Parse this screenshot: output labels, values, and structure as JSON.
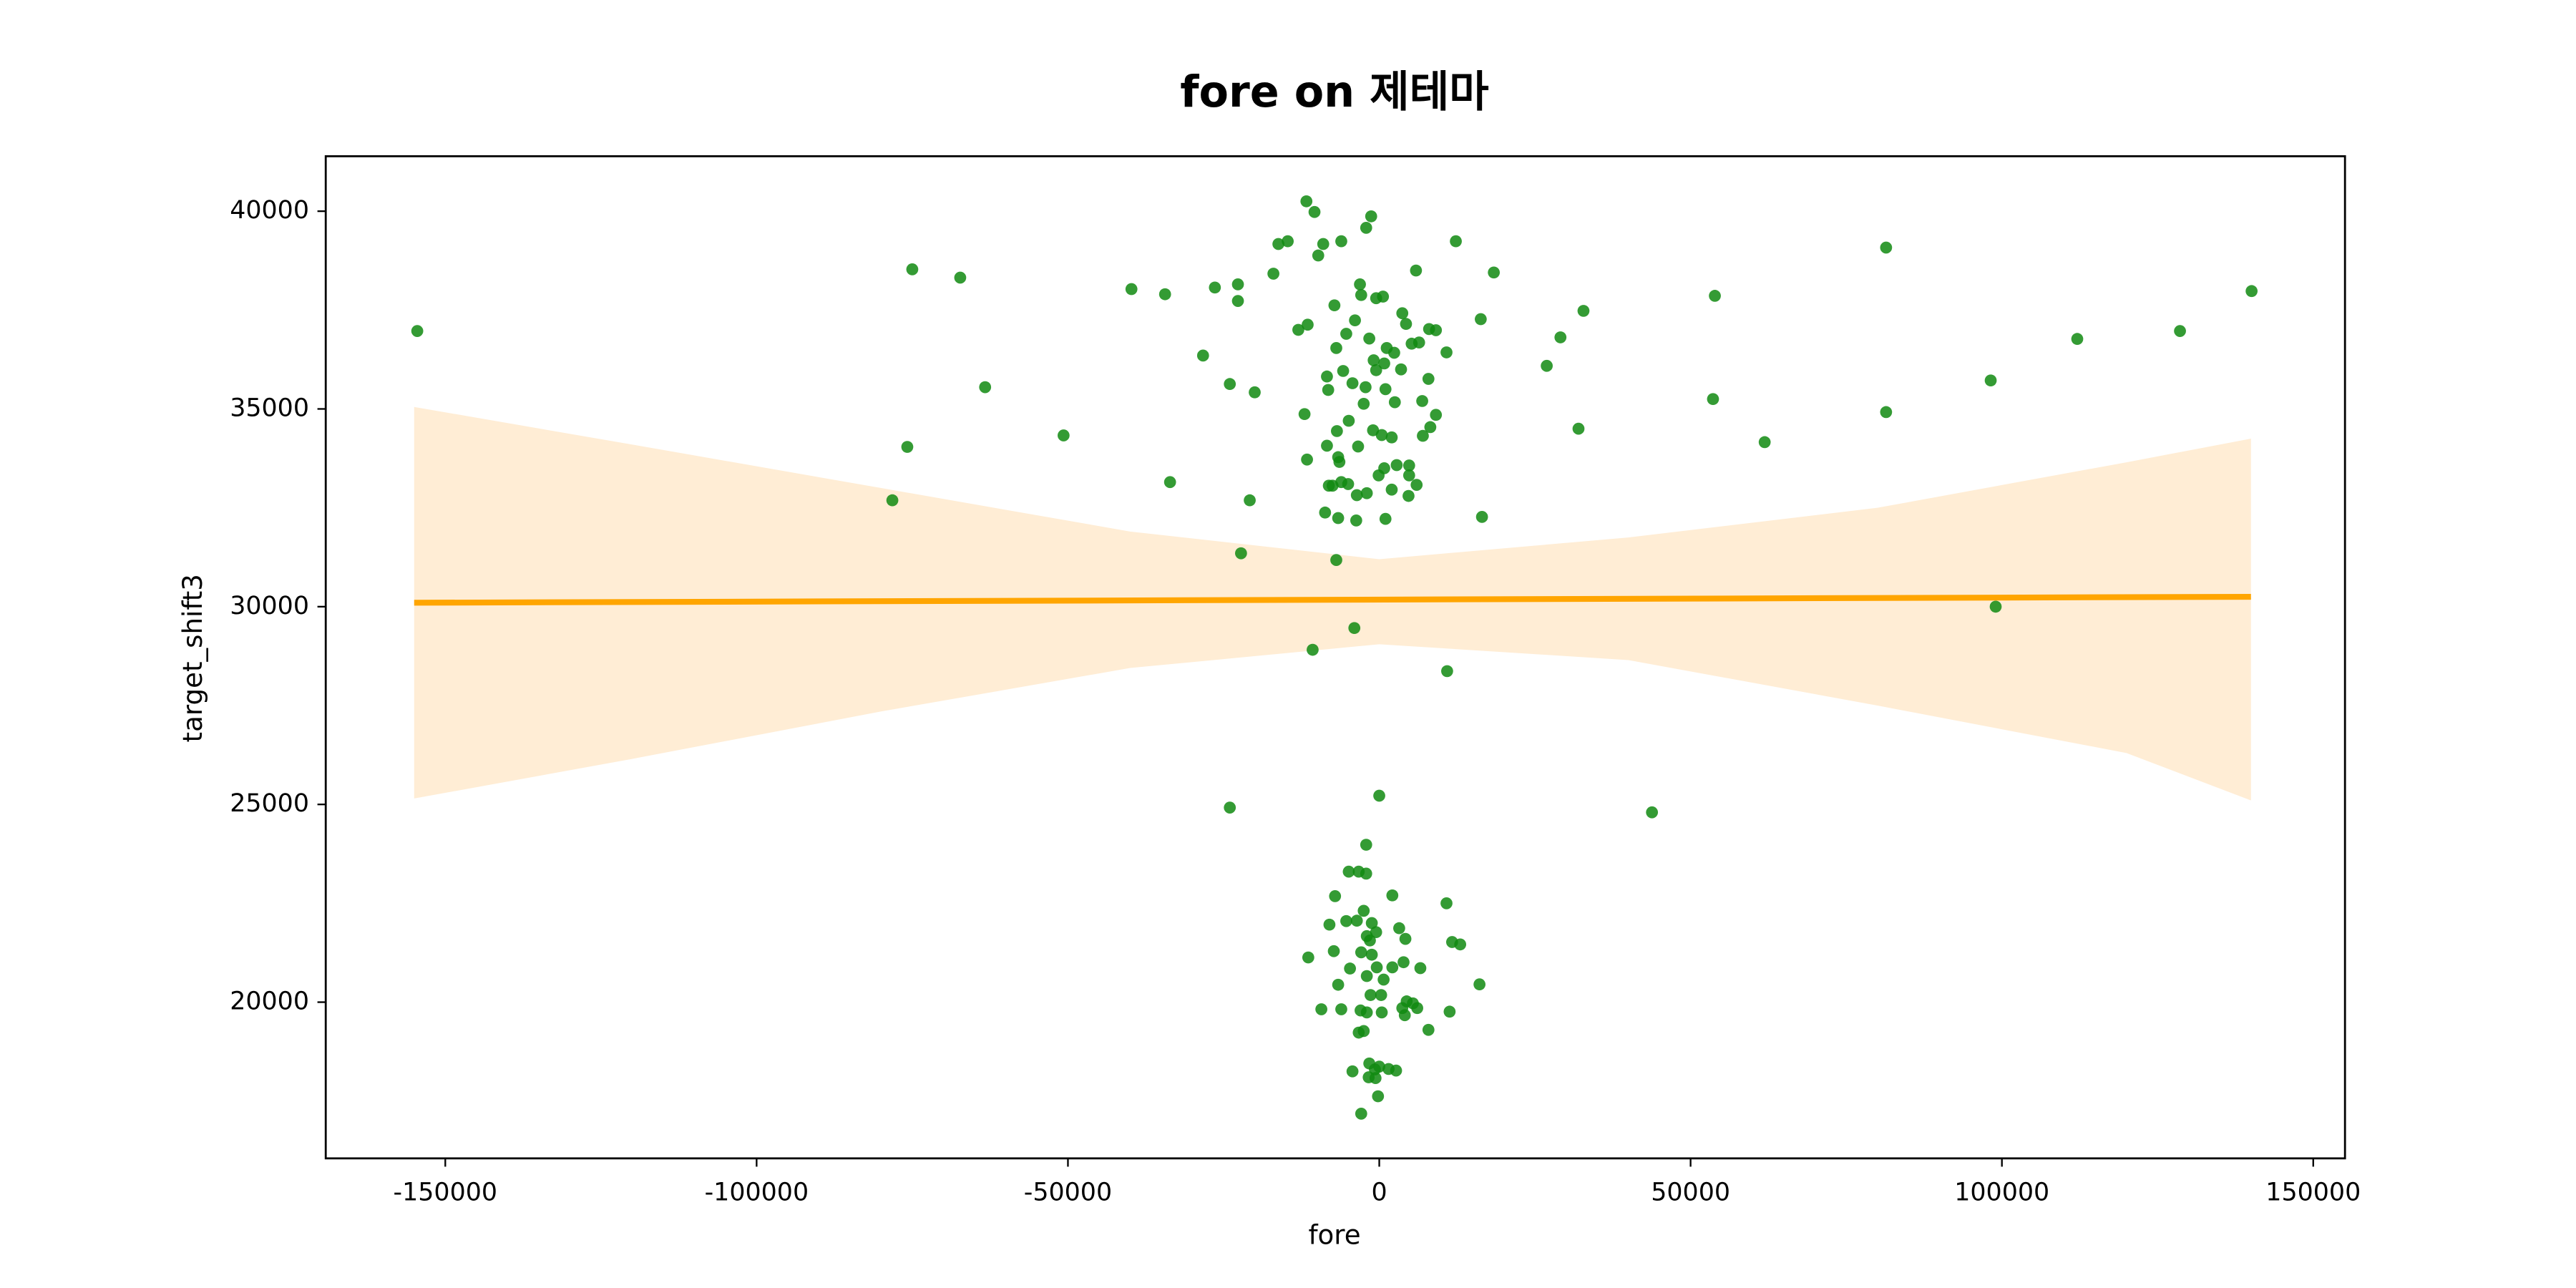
{
  "chart_data": {
    "type": "scatter",
    "title": "fore on 제테마",
    "x_label": "fore",
    "y_label": "target_shift3",
    "xlim": [
      -169200,
      155100
    ],
    "ylim": [
      16050,
      41390
    ],
    "xticks": [
      -150000,
      -100000,
      -50000,
      0,
      50000,
      100000,
      150000
    ],
    "yticks": [
      20000,
      25000,
      30000,
      35000,
      40000
    ],
    "color": "#118a11",
    "x": [
      -154500,
      -75000,
      -67300,
      -75800,
      -78200,
      -63300,
      -50700,
      -39800,
      -34400,
      -33600,
      -28300,
      -26400,
      -22700,
      -22700,
      -24000,
      -20000,
      -20800,
      -22200,
      -24000,
      -10700,
      -4000,
      10900,
      0,
      43800,
      16500,
      -6900,
      12300,
      18400,
      16300,
      26900,
      29100,
      32800,
      32000,
      53900,
      53600,
      61900,
      81400,
      81400,
      98200,
      99000,
      112100,
      128600,
      140100,
      -11700,
      -10400,
      -1300,
      -2100,
      -14700,
      -16200,
      -6100,
      -9000,
      -9800,
      -17000,
      5900,
      -3100,
      -500,
      600,
      -2900,
      -7200,
      3700,
      4300,
      -3900,
      -11500,
      -13000,
      8000,
      9100,
      -5300,
      -1600,
      6400,
      5200,
      1200,
      2400,
      -6900,
      10800,
      -900,
      800,
      3500,
      -500,
      -5800,
      7900,
      -8400,
      -4300,
      -2200,
      -8200,
      1000,
      6900,
      2500,
      -2500,
      -12000,
      9100,
      -4900,
      8200,
      -1000,
      400,
      -6800,
      2000,
      7000,
      -8400,
      -3400,
      -6600,
      -11600,
      -6400,
      2800,
      800,
      4800,
      4800,
      -100,
      -7500,
      -6100,
      -5000,
      -8100,
      2000,
      -3600,
      4700,
      -2000,
      6000,
      -8700,
      -6600,
      -3700,
      1000,
      -2100,
      -3300,
      -4900,
      -2100,
      2100,
      -7100,
      10800,
      -2500,
      -3600,
      -1200,
      -5300,
      -8000,
      3200,
      -500,
      -2000,
      4200,
      -1500,
      11700,
      13000,
      -7300,
      -2900,
      -1200,
      3900,
      -11400,
      -4700,
      2100,
      -400,
      6600,
      -2000,
      700,
      -6600,
      16100,
      300,
      -1400,
      4400,
      5400,
      3700,
      6100,
      4100,
      -9300,
      -6100,
      -3000,
      -2000,
      11300,
      400,
      -3300,
      -2500,
      7900,
      -4300,
      -1600,
      -700,
      0,
      1500,
      2700,
      -1700,
      -600,
      -200,
      -2900
    ],
    "values": [
      36970,
      38530,
      38320,
      34040,
      32690,
      35550,
      34330,
      38030,
      37900,
      33150,
      36350,
      38070,
      38150,
      37730,
      35630,
      35420,
      32690,
      31350,
      24920,
      28910,
      29460,
      28370,
      25220,
      24800,
      32270,
      31180,
      39240,
      38450,
      37270,
      36090,
      36810,
      37480,
      34500,
      37860,
      35250,
      34160,
      39080,
      34920,
      35720,
      30000,
      36770,
      36970,
      37980,
      40250,
      39980,
      39870,
      39580,
      39240,
      39170,
      39240,
      39170,
      38880,
      38420,
      38500,
      38150,
      37800,
      37840,
      37880,
      37620,
      37420,
      37150,
      37240,
      37130,
      37000,
      37020,
      36990,
      36900,
      36780,
      36680,
      36650,
      36540,
      36420,
      36540,
      36430,
      36230,
      36150,
      36000,
      35980,
      35960,
      35760,
      35820,
      35650,
      35550,
      35480,
      35500,
      35200,
      35170,
      35130,
      34870,
      34850,
      34700,
      34540,
      34460,
      34340,
      34440,
      34280,
      34320,
      34070,
      34050,
      33780,
      33720,
      33660,
      33580,
      33500,
      33570,
      33320,
      33320,
      33060,
      33150,
      33100,
      33060,
      32960,
      32820,
      32800,
      32870,
      33080,
      32380,
      32240,
      32180,
      32220,
      23980,
      23300,
      23300,
      23250,
      22700,
      22680,
      22500,
      22310,
      22060,
      22000,
      22050,
      21960,
      21870,
      21770,
      21670,
      21600,
      21560,
      21520,
      21460,
      21290,
      21260,
      21200,
      21010,
      21130,
      20850,
      20880,
      20880,
      20860,
      20660,
      20570,
      20440,
      20450,
      20180,
      20180,
      20020,
      19970,
      19850,
      19850,
      19670,
      19820,
      19820,
      19790,
      19740,
      19760,
      19740,
      19230,
      19270,
      19300,
      18250,
      18450,
      18300,
      18370,
      18310,
      18270,
      18100,
      18080,
      17620,
      17180
    ],
    "regression": {
      "color": "#ffa500",
      "x": [
        -155000,
        140000
      ],
      "y": [
        30100,
        30250
      ]
    },
    "band": {
      "color": "#ffedd5",
      "x": [
        -155000,
        -120000,
        -80000,
        -40000,
        0,
        40000,
        80000,
        120000,
        140000
      ],
      "lower": [
        25150,
        26150,
        27350,
        28450,
        29050,
        28650,
        27500,
        26300,
        25100
      ],
      "upper": [
        35050,
        34100,
        33000,
        31900,
        31200,
        31750,
        32500,
        33650,
        34250
      ]
    }
  }
}
